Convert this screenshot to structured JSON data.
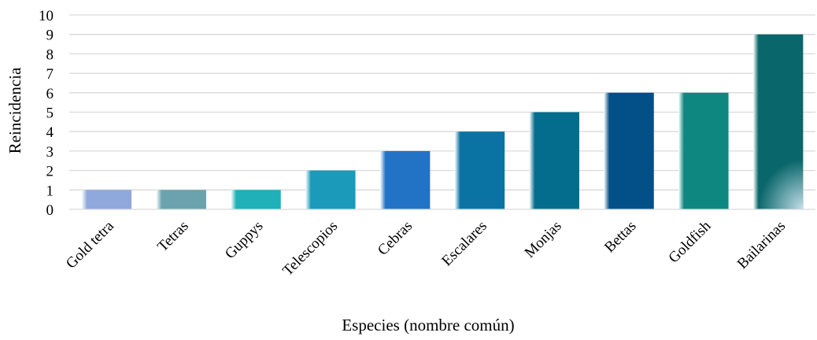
{
  "chart_data": {
    "type": "bar",
    "categories": [
      "Gold tetra",
      "Tetras",
      "Guppys",
      "Telescopios",
      "Cebras",
      "Escalares",
      "Monjas",
      "Bettas",
      "Goldfish",
      "Bailarinas"
    ],
    "values": [
      1,
      1,
      1,
      2,
      3,
      4,
      5,
      6,
      6,
      9
    ],
    "colors": [
      "#8fa9dc",
      "#6aa3ad",
      "#1fb0b8",
      "#1b9aba",
      "#2273c6",
      "#0a73a4",
      "#046c8c",
      "#035088",
      "#0e8781",
      "#09666a"
    ],
    "title": "",
    "xlabel": "Especies (nombre común)",
    "ylabel": "Reincidencia",
    "ylim": [
      0,
      10
    ],
    "yticks": [
      "0",
      "1",
      "2",
      "3",
      "4",
      "5",
      "6",
      "7",
      "8",
      "9",
      "10"
    ],
    "grid": true,
    "legend": "none"
  }
}
